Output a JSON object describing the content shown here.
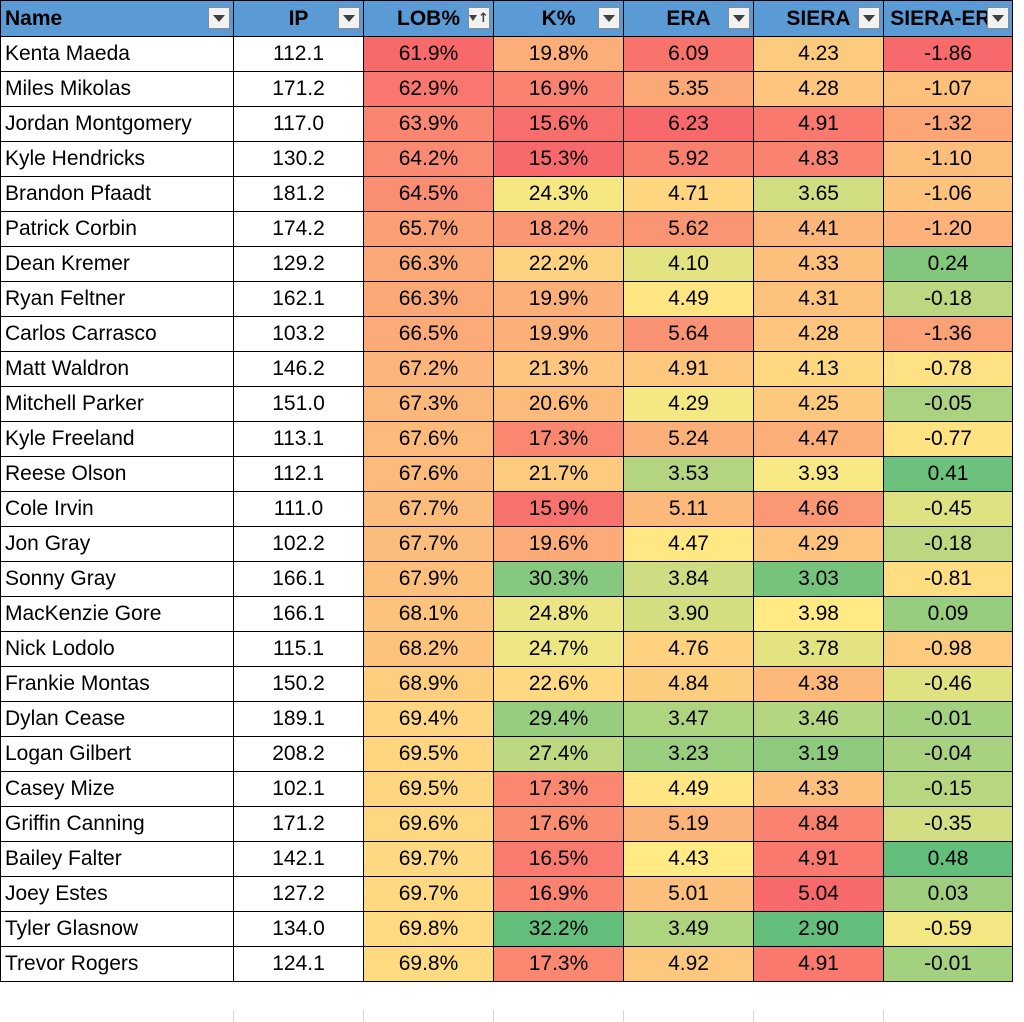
{
  "columns": [
    {
      "key": "name",
      "label": "Name",
      "sorted": false
    },
    {
      "key": "ip",
      "label": "IP",
      "sorted": false
    },
    {
      "key": "lob",
      "label": "LOB%",
      "sorted": true
    },
    {
      "key": "k",
      "label": "K%",
      "sorted": false
    },
    {
      "key": "era",
      "label": "ERA",
      "sorted": false
    },
    {
      "key": "siera",
      "label": "SIERA",
      "sorted": false
    },
    {
      "key": "diff",
      "label": "SIERA-ERA",
      "sorted": false
    }
  ],
  "colors": {
    "header_fill": "#5b9bd5",
    "heat_low": "#f8696b",
    "heat_mid": "#ffeb84",
    "heat_high": "#63be7b",
    "grid": "#000000"
  },
  "rows": [
    {
      "name": "Kenta Maeda",
      "ip": "112.1",
      "lob": "61.9%",
      "k": "19.8%",
      "era": "6.09",
      "siera": "4.23",
      "diff": "-1.86"
    },
    {
      "name": "Miles Mikolas",
      "ip": "171.2",
      "lob": "62.9%",
      "k": "16.9%",
      "era": "5.35",
      "siera": "4.28",
      "diff": "-1.07"
    },
    {
      "name": "Jordan Montgomery",
      "ip": "117.0",
      "lob": "63.9%",
      "k": "15.6%",
      "era": "6.23",
      "siera": "4.91",
      "diff": "-1.32"
    },
    {
      "name": "Kyle Hendricks",
      "ip": "130.2",
      "lob": "64.2%",
      "k": "15.3%",
      "era": "5.92",
      "siera": "4.83",
      "diff": "-1.10"
    },
    {
      "name": "Brandon Pfaadt",
      "ip": "181.2",
      "lob": "64.5%",
      "k": "24.3%",
      "era": "4.71",
      "siera": "3.65",
      "diff": "-1.06"
    },
    {
      "name": "Patrick Corbin",
      "ip": "174.2",
      "lob": "65.7%",
      "k": "18.2%",
      "era": "5.62",
      "siera": "4.41",
      "diff": "-1.20"
    },
    {
      "name": "Dean Kremer",
      "ip": "129.2",
      "lob": "66.3%",
      "k": "22.2%",
      "era": "4.10",
      "siera": "4.33",
      "diff": "0.24"
    },
    {
      "name": "Ryan Feltner",
      "ip": "162.1",
      "lob": "66.3%",
      "k": "19.9%",
      "era": "4.49",
      "siera": "4.31",
      "diff": "-0.18"
    },
    {
      "name": "Carlos Carrasco",
      "ip": "103.2",
      "lob": "66.5%",
      "k": "19.9%",
      "era": "5.64",
      "siera": "4.28",
      "diff": "-1.36"
    },
    {
      "name": "Matt Waldron",
      "ip": "146.2",
      "lob": "67.2%",
      "k": "21.3%",
      "era": "4.91",
      "siera": "4.13",
      "diff": "-0.78"
    },
    {
      "name": "Mitchell Parker",
      "ip": "151.0",
      "lob": "67.3%",
      "k": "20.6%",
      "era": "4.29",
      "siera": "4.25",
      "diff": "-0.05"
    },
    {
      "name": "Kyle Freeland",
      "ip": "113.1",
      "lob": "67.6%",
      "k": "17.3%",
      "era": "5.24",
      "siera": "4.47",
      "diff": "-0.77"
    },
    {
      "name": "Reese Olson",
      "ip": "112.1",
      "lob": "67.6%",
      "k": "21.7%",
      "era": "3.53",
      "siera": "3.93",
      "diff": "0.41"
    },
    {
      "name": "Cole Irvin",
      "ip": "111.0",
      "lob": "67.7%",
      "k": "15.9%",
      "era": "5.11",
      "siera": "4.66",
      "diff": "-0.45"
    },
    {
      "name": "Jon Gray",
      "ip": "102.2",
      "lob": "67.7%",
      "k": "19.6%",
      "era": "4.47",
      "siera": "4.29",
      "diff": "-0.18"
    },
    {
      "name": "Sonny Gray",
      "ip": "166.1",
      "lob": "67.9%",
      "k": "30.3%",
      "era": "3.84",
      "siera": "3.03",
      "diff": "-0.81"
    },
    {
      "name": "MacKenzie Gore",
      "ip": "166.1",
      "lob": "68.1%",
      "k": "24.8%",
      "era": "3.90",
      "siera": "3.98",
      "diff": "0.09"
    },
    {
      "name": "Nick Lodolo",
      "ip": "115.1",
      "lob": "68.2%",
      "k": "24.7%",
      "era": "4.76",
      "siera": "3.78",
      "diff": "-0.98"
    },
    {
      "name": "Frankie Montas",
      "ip": "150.2",
      "lob": "68.9%",
      "k": "22.6%",
      "era": "4.84",
      "siera": "4.38",
      "diff": "-0.46"
    },
    {
      "name": "Dylan Cease",
      "ip": "189.1",
      "lob": "69.4%",
      "k": "29.4%",
      "era": "3.47",
      "siera": "3.46",
      "diff": "-0.01"
    },
    {
      "name": "Logan Gilbert",
      "ip": "208.2",
      "lob": "69.5%",
      "k": "27.4%",
      "era": "3.23",
      "siera": "3.19",
      "diff": "-0.04"
    },
    {
      "name": "Casey Mize",
      "ip": "102.1",
      "lob": "69.5%",
      "k": "17.3%",
      "era": "4.49",
      "siera": "4.33",
      "diff": "-0.15"
    },
    {
      "name": "Griffin Canning",
      "ip": "171.2",
      "lob": "69.6%",
      "k": "17.6%",
      "era": "5.19",
      "siera": "4.84",
      "diff": "-0.35"
    },
    {
      "name": "Bailey Falter",
      "ip": "142.1",
      "lob": "69.7%",
      "k": "16.5%",
      "era": "4.43",
      "siera": "4.91",
      "diff": "0.48"
    },
    {
      "name": "Joey Estes",
      "ip": "127.2",
      "lob": "69.7%",
      "k": "16.9%",
      "era": "5.01",
      "siera": "5.04",
      "diff": "0.03"
    },
    {
      "name": "Tyler Glasnow",
      "ip": "134.0",
      "lob": "69.8%",
      "k": "32.2%",
      "era": "3.49",
      "siera": "2.90",
      "diff": "-0.59"
    },
    {
      "name": "Trevor Rogers",
      "ip": "124.1",
      "lob": "69.8%",
      "k": "17.3%",
      "era": "4.92",
      "siera": "4.91",
      "diff": "-0.01"
    }
  ]
}
